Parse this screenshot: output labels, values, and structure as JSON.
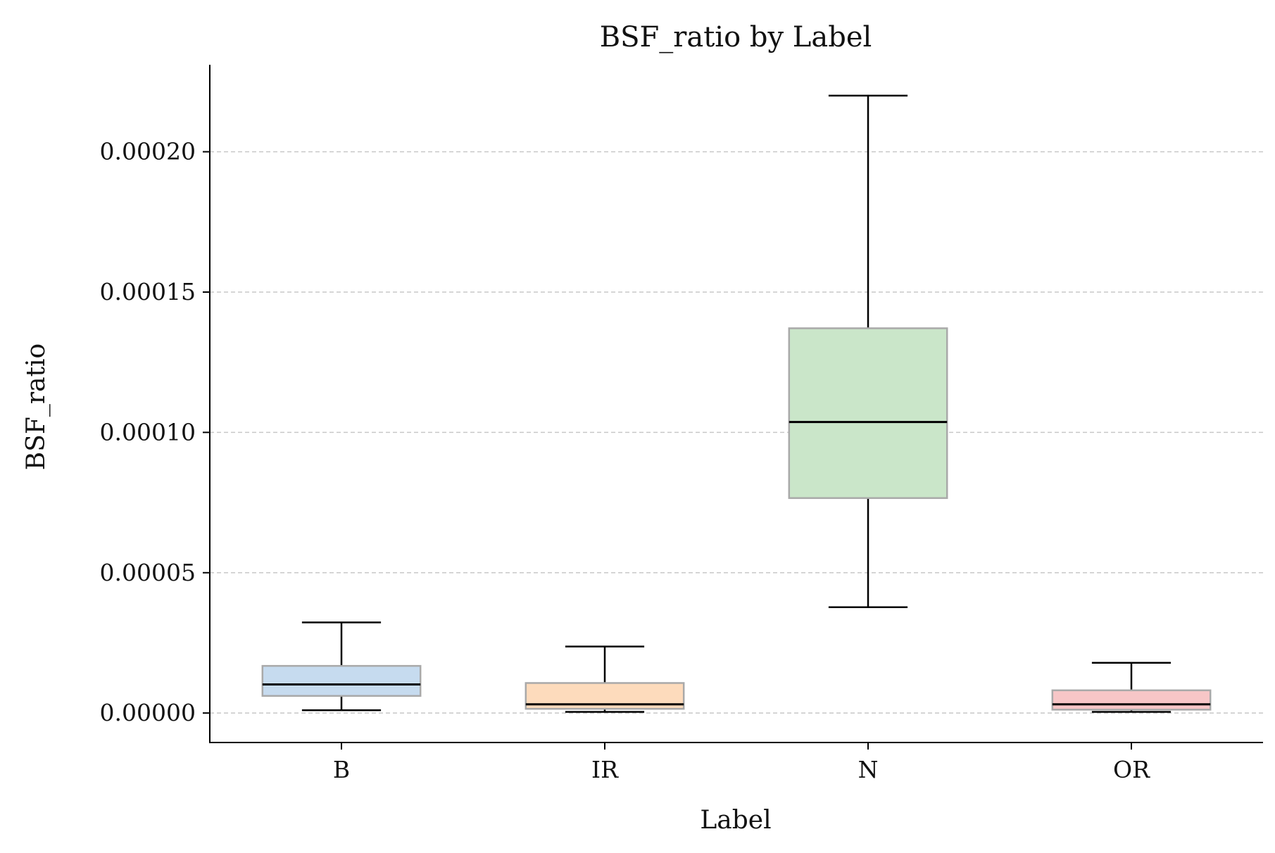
{
  "chart_data": {
    "type": "box",
    "title": "BSF_ratio by Label",
    "xlabel": "Label",
    "ylabel": "BSF_ratio",
    "ylim": [
      -1.05e-05,
      0.000231
    ],
    "yticks": [
      0.0,
      5e-05,
      0.0001,
      0.00015,
      0.0002
    ],
    "ytick_labels": [
      "0.00000",
      "0.00005",
      "0.00010",
      "0.00015",
      "0.00020"
    ],
    "grid": "horizontal dashed",
    "categories": [
      "B",
      "IR",
      "N",
      "OR"
    ],
    "boxes": [
      {
        "label": "B",
        "whisker_low": 1e-06,
        "q1": 6.1e-06,
        "median": 1.02e-05,
        "q3": 1.68e-05,
        "whisker_high": 3.23e-05,
        "color": "#c6dbef"
      },
      {
        "label": "IR",
        "whisker_low": 4e-07,
        "q1": 1.5e-06,
        "median": 3.1e-06,
        "q3": 1.07e-05,
        "whisker_high": 2.37e-05,
        "color": "#fddbbc"
      },
      {
        "label": "N",
        "whisker_low": 3.77e-05,
        "q1": 7.66e-05,
        "median": 0.0001037,
        "q3": 0.0001371,
        "whisker_high": 0.00022,
        "color": "#cae6c9"
      },
      {
        "label": "OR",
        "whisker_low": 4e-07,
        "q1": 1.2e-06,
        "median": 3.1e-06,
        "q3": 8.1e-06,
        "whisker_high": 1.79e-05,
        "color": "#f7c6c7"
      }
    ]
  }
}
